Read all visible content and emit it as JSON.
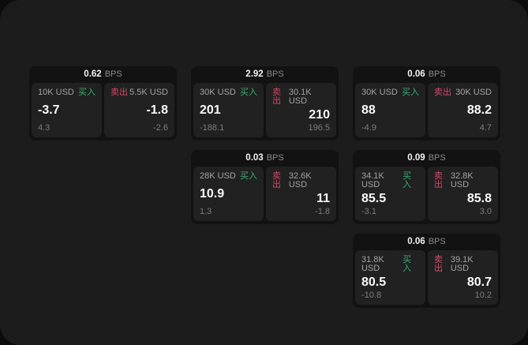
{
  "window": {
    "background": "#0c0c0c",
    "panel_background": "#1c1c1c"
  },
  "labels": {
    "buy": "买入",
    "sell": "卖出",
    "bps_unit": "BPS"
  },
  "colors": {
    "buy_green": "#3bab73",
    "sell_red": "#d4486a",
    "card_bg": "#121212",
    "tile_bg": "#212121"
  },
  "cards": [
    {
      "bps": "0.62",
      "buy": {
        "notional": "10K USD",
        "price": "-3.7",
        "secondary": "4.3"
      },
      "sell": {
        "notional": "5.5K USD",
        "price": "-1.8",
        "secondary": "-2.6"
      }
    },
    {
      "bps": "2.92",
      "buy": {
        "notional": "30K USD",
        "price": "201",
        "secondary": "-188.1"
      },
      "sell": {
        "notional": "30.1K USD",
        "price": "210",
        "secondary": "196.5"
      }
    },
    {
      "bps": "0.06",
      "buy": {
        "notional": "30K USD",
        "price": "88",
        "secondary": "-4.9"
      },
      "sell": {
        "notional": "30K USD",
        "price": "88.2",
        "secondary": "4.7"
      }
    },
    {
      "bps": "0.03",
      "buy": {
        "notional": "28K USD",
        "price": "10.9",
        "secondary": "1.3"
      },
      "sell": {
        "notional": "32.6K USD",
        "price": "11",
        "secondary": "-1.8"
      }
    },
    {
      "bps": "0.09",
      "buy": {
        "notional": "34.1K USD",
        "price": "85.5",
        "secondary": "-3.1"
      },
      "sell": {
        "notional": "32.8K USD",
        "price": "85.8",
        "secondary": "3.0"
      }
    },
    {
      "bps": "0.06",
      "buy": {
        "notional": "31.8K USD",
        "price": "80.5",
        "secondary": "-10.8"
      },
      "sell": {
        "notional": "39.1K USD",
        "price": "80.7",
        "secondary": "10.2"
      }
    }
  ]
}
